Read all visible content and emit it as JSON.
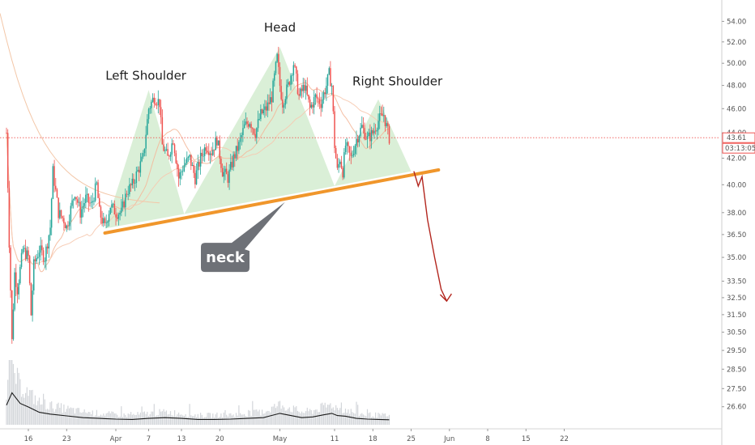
{
  "chart_data": {
    "type": "candlestick",
    "y_scale": "log",
    "ylim": [
      26.0,
      55.5
    ],
    "y_ticks": [
      "54.00",
      "52.00",
      "50.00",
      "48.00",
      "46.00",
      "44.00",
      "42.00",
      "40.00",
      "38.00",
      "36.50",
      "35.00",
      "33.50",
      "32.50",
      "31.50",
      "30.50",
      "29.50",
      "28.50",
      "27.50",
      "26.60"
    ],
    "x_ticks": [
      {
        "label": "16",
        "day": 16
      },
      {
        "label": "23",
        "day": 23
      },
      {
        "label": "Apr",
        "day": 32
      },
      {
        "label": "7",
        "day": 38
      },
      {
        "label": "13",
        "day": 44
      },
      {
        "label": "20",
        "day": 51
      },
      {
        "label": "May",
        "day": 62
      },
      {
        "label": "11",
        "day": 72
      },
      {
        "label": "18",
        "day": 79
      },
      {
        "label": "25",
        "day": 86
      },
      {
        "label": "Jun",
        "day": 93
      },
      {
        "label": "8",
        "day": 100
      },
      {
        "label": "15",
        "day": 107
      },
      {
        "label": "22",
        "day": 114
      }
    ],
    "price_path": [
      [
        12.0,
        44.0
      ],
      [
        12.5,
        36.0
      ],
      [
        13.0,
        30.0
      ],
      [
        13.5,
        34.0
      ],
      [
        14.0,
        33.0
      ],
      [
        15.0,
        35.5
      ],
      [
        16.0,
        35.0
      ],
      [
        16.5,
        31.5
      ],
      [
        17.0,
        34.5
      ],
      [
        18.0,
        35.5
      ],
      [
        19.0,
        35.0
      ],
      [
        20.0,
        37.0
      ],
      [
        20.5,
        41.0
      ],
      [
        21.5,
        38.0
      ],
      [
        22.5,
        37.5
      ],
      [
        23.0,
        37.0
      ],
      [
        24.5,
        39.5
      ],
      [
        25.5,
        38.0
      ],
      [
        26.5,
        39.0
      ],
      [
        27.5,
        38.5
      ],
      [
        28.5,
        40.0
      ],
      [
        29.0,
        38.0
      ],
      [
        30.0,
        37.0
      ],
      [
        31.0,
        38.5
      ],
      [
        32.0,
        38.0
      ],
      [
        33.0,
        38.0
      ],
      [
        34.0,
        39.5
      ],
      [
        35.0,
        40.0
      ],
      [
        36.0,
        41.0
      ],
      [
        37.0,
        42.0
      ],
      [
        38.0,
        46.0
      ],
      [
        39.0,
        47.0
      ],
      [
        40.0,
        46.5
      ],
      [
        40.5,
        43.0
      ],
      [
        41.5,
        42.0
      ],
      [
        42.5,
        43.5
      ],
      [
        43.5,
        40.5
      ],
      [
        44.5,
        41.5
      ],
      [
        45.5,
        42.0
      ],
      [
        46.5,
        40.5
      ],
      [
        47.5,
        42.0
      ],
      [
        48.5,
        43.0
      ],
      [
        49.5,
        42.5
      ],
      [
        50.5,
        43.5
      ],
      [
        51.5,
        41.0
      ],
      [
        52.5,
        40.5
      ],
      [
        53.5,
        42.0
      ],
      [
        54.5,
        43.0
      ],
      [
        55.5,
        44.5
      ],
      [
        56.5,
        45.0
      ],
      [
        57.5,
        44.0
      ],
      [
        58.5,
        45.5
      ],
      [
        59.5,
        46.0
      ],
      [
        60.5,
        47.0
      ],
      [
        61.5,
        50.5
      ],
      [
        62.0,
        48.0
      ],
      [
        62.5,
        46.5
      ],
      [
        63.5,
        48.0
      ],
      [
        64.5,
        50.0
      ],
      [
        65.5,
        47.0
      ],
      [
        66.5,
        48.0
      ],
      [
        67.5,
        46.0
      ],
      [
        68.5,
        47.0
      ],
      [
        69.5,
        46.5
      ],
      [
        70.5,
        48.0
      ],
      [
        71.0,
        49.0
      ],
      [
        71.5,
        48.0
      ],
      [
        72.0,
        43.0
      ],
      [
        72.5,
        41.0
      ],
      [
        73.0,
        42.0
      ],
      [
        73.5,
        41.0
      ],
      [
        74.0,
        43.0
      ],
      [
        75.0,
        42.0
      ],
      [
        76.0,
        43.5
      ],
      [
        77.0,
        44.5
      ],
      [
        78.0,
        43.5
      ],
      [
        79.0,
        44.0
      ],
      [
        80.0,
        45.0
      ],
      [
        81.0,
        45.5
      ],
      [
        81.5,
        44.5
      ],
      [
        82.0,
        43.6
      ]
    ],
    "volume_path": [
      [
        12.0,
        0.55
      ],
      [
        13.0,
        0.9
      ],
      [
        13.5,
        0.8
      ],
      [
        14.5,
        0.6
      ],
      [
        16.0,
        0.5
      ],
      [
        18.0,
        0.35
      ],
      [
        20.0,
        0.3
      ],
      [
        23.0,
        0.25
      ],
      [
        26.0,
        0.2
      ],
      [
        29.0,
        0.18
      ],
      [
        32.0,
        0.16
      ],
      [
        35.0,
        0.15
      ],
      [
        38.0,
        0.18
      ],
      [
        41.0,
        0.2
      ],
      [
        44.0,
        0.18
      ],
      [
        47.0,
        0.15
      ],
      [
        50.0,
        0.15
      ],
      [
        53.0,
        0.16
      ],
      [
        56.0,
        0.18
      ],
      [
        59.0,
        0.2
      ],
      [
        60.0,
        0.24
      ],
      [
        62.0,
        0.32
      ],
      [
        64.0,
        0.26
      ],
      [
        66.0,
        0.2
      ],
      [
        68.0,
        0.22
      ],
      [
        70.0,
        0.28
      ],
      [
        71.5,
        0.32
      ],
      [
        72.5,
        0.26
      ],
      [
        74.0,
        0.24
      ],
      [
        76.0,
        0.18
      ],
      [
        78.0,
        0.16
      ],
      [
        80.0,
        0.15
      ],
      [
        82.0,
        0.14
      ]
    ],
    "pattern_triangles": [
      {
        "name": "Left Shoulder",
        "points": [
          [
            30.0,
            36.9
          ],
          [
            38.0,
            47.6
          ],
          [
            44.5,
            37.9
          ]
        ]
      },
      {
        "name": "Head",
        "points": [
          [
            44.5,
            37.9
          ],
          [
            62.0,
            51.5
          ],
          [
            72.0,
            39.9
          ]
        ]
      },
      {
        "name": "Right Shoulder",
        "points": [
          [
            72.0,
            39.9
          ],
          [
            80.0,
            46.8
          ],
          [
            86.0,
            41.0
          ]
        ]
      }
    ],
    "neckline": [
      [
        30.0,
        36.6
      ],
      [
        91.0,
        41.1
      ]
    ],
    "current_price": 43.61,
    "projection": [
      [
        86.5,
        41.0
      ],
      [
        87.3,
        39.9
      ],
      [
        88.0,
        40.6
      ],
      [
        89.0,
        37.5
      ],
      [
        90.3,
        35.0
      ],
      [
        91.5,
        33.0
      ],
      [
        92.5,
        32.3
      ]
    ],
    "annotations": [
      {
        "text": "Left Shoulder",
        "day": 37.5,
        "price": 48.5
      },
      {
        "text": "Head",
        "day": 62.0,
        "price": 53.0
      },
      {
        "text": "Right Shoulder",
        "day": 83.5,
        "price": 48.0
      }
    ],
    "callout": {
      "text": "neck",
      "day": 52.0,
      "price": 35.0
    },
    "price_label": "43.61",
    "timer_label": "03:13:05",
    "colors": {
      "up": "#26a69a",
      "down": "#ef5350",
      "triangle_fill": "#cde9c9",
      "neckline": "#f0962b",
      "projection": "#b3261e",
      "ma": "#f4b89a",
      "volume_line": "#1a1a1a",
      "price_marker": "#ef5350"
    }
  }
}
